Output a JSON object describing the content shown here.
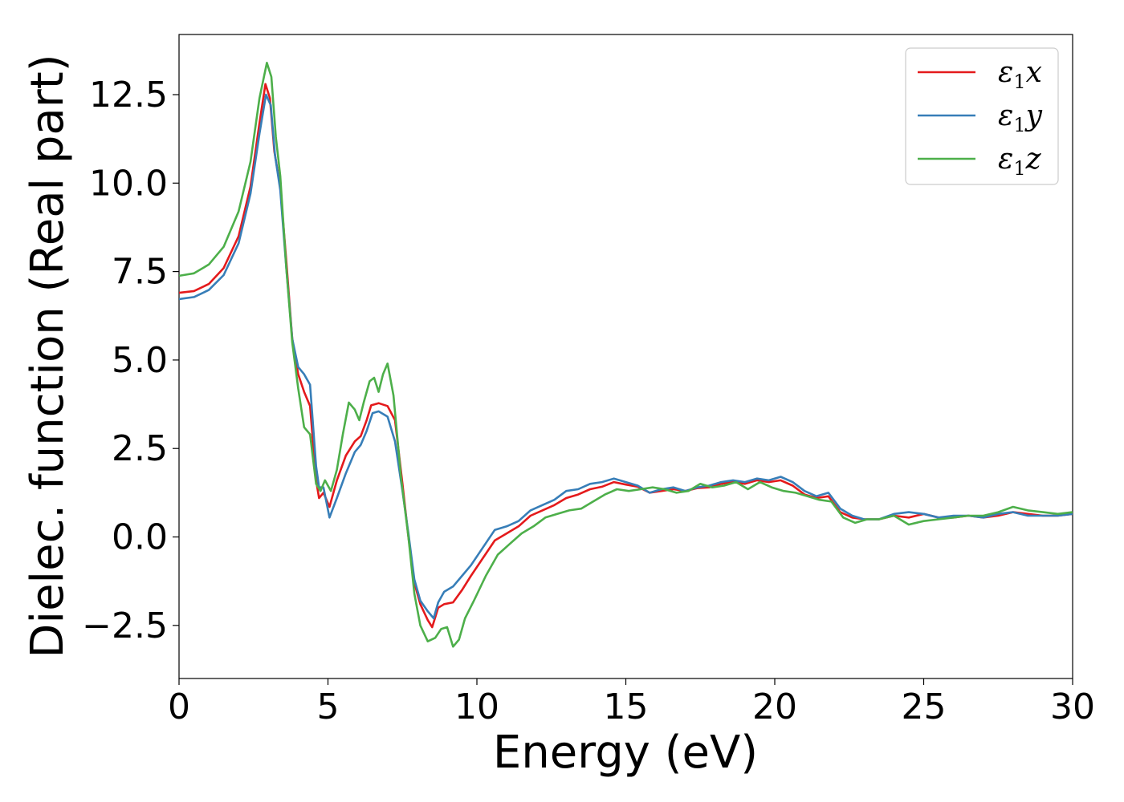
{
  "chart_data": {
    "type": "line",
    "xlabel": "Energy (eV)",
    "ylabel": "Dielec. function (Real part)",
    "xlim": [
      0,
      30
    ],
    "ylim": [
      -4.0,
      14.2
    ],
    "xticks": [
      0,
      5,
      10,
      15,
      20,
      25,
      30
    ],
    "xtick_labels": [
      "0",
      "5",
      "10",
      "15",
      "20",
      "25",
      "30"
    ],
    "yticks": [
      -2.5,
      0.0,
      2.5,
      5.0,
      7.5,
      10.0,
      12.5
    ],
    "ytick_labels": [
      "−2.5",
      "0.0",
      "2.5",
      "5.0",
      "7.5",
      "10.0",
      "12.5"
    ],
    "grid": false,
    "legend_position": "top-right",
    "series": [
      {
        "name": "ε1x",
        "label_main": "ε",
        "label_sub": "1",
        "label_tail": "x",
        "color": "#e41a1c",
        "points": [
          [
            0,
            6.9
          ],
          [
            0.5,
            6.95
          ],
          [
            1.0,
            7.15
          ],
          [
            1.5,
            7.6
          ],
          [
            2.0,
            8.5
          ],
          [
            2.4,
            9.9
          ],
          [
            2.7,
            11.7
          ],
          [
            2.9,
            12.8
          ],
          [
            3.05,
            12.4
          ],
          [
            3.2,
            10.9
          ],
          [
            3.4,
            9.9
          ],
          [
            3.6,
            7.8
          ],
          [
            3.8,
            5.6
          ],
          [
            4.0,
            4.6
          ],
          [
            4.2,
            4.1
          ],
          [
            4.4,
            3.7
          ],
          [
            4.6,
            1.6
          ],
          [
            4.7,
            1.1
          ],
          [
            4.85,
            1.25
          ],
          [
            5.05,
            0.85
          ],
          [
            5.3,
            1.6
          ],
          [
            5.6,
            2.3
          ],
          [
            5.9,
            2.7
          ],
          [
            6.1,
            2.85
          ],
          [
            6.3,
            3.3
          ],
          [
            6.45,
            3.72
          ],
          [
            6.7,
            3.78
          ],
          [
            7.0,
            3.7
          ],
          [
            7.25,
            3.3
          ],
          [
            7.5,
            1.5
          ],
          [
            7.7,
            0.0
          ],
          [
            7.9,
            -1.3
          ],
          [
            8.1,
            -1.9
          ],
          [
            8.35,
            -2.35
          ],
          [
            8.5,
            -2.55
          ],
          [
            8.7,
            -2.0
          ],
          [
            8.9,
            -1.9
          ],
          [
            9.2,
            -1.85
          ],
          [
            9.5,
            -1.5
          ],
          [
            9.8,
            -1.1
          ],
          [
            10.2,
            -0.6
          ],
          [
            10.6,
            -0.1
          ],
          [
            11.0,
            0.1
          ],
          [
            11.4,
            0.3
          ],
          [
            11.8,
            0.6
          ],
          [
            12.2,
            0.75
          ],
          [
            12.6,
            0.9
          ],
          [
            13.0,
            1.1
          ],
          [
            13.4,
            1.2
          ],
          [
            13.8,
            1.35
          ],
          [
            14.2,
            1.42
          ],
          [
            14.6,
            1.55
          ],
          [
            15.0,
            1.48
          ],
          [
            15.4,
            1.42
          ],
          [
            15.8,
            1.25
          ],
          [
            16.2,
            1.3
          ],
          [
            16.6,
            1.35
          ],
          [
            17.0,
            1.3
          ],
          [
            17.4,
            1.38
          ],
          [
            17.8,
            1.4
          ],
          [
            18.2,
            1.5
          ],
          [
            18.6,
            1.55
          ],
          [
            19.0,
            1.5
          ],
          [
            19.4,
            1.6
          ],
          [
            19.8,
            1.55
          ],
          [
            20.2,
            1.6
          ],
          [
            20.6,
            1.45
          ],
          [
            21.0,
            1.2
          ],
          [
            21.4,
            1.1
          ],
          [
            21.8,
            1.15
          ],
          [
            22.2,
            0.7
          ],
          [
            22.6,
            0.55
          ],
          [
            23.0,
            0.5
          ],
          [
            23.5,
            0.5
          ],
          [
            24.0,
            0.6
          ],
          [
            24.5,
            0.55
          ],
          [
            25.0,
            0.65
          ],
          [
            25.5,
            0.55
          ],
          [
            26.0,
            0.55
          ],
          [
            26.5,
            0.6
          ],
          [
            27.0,
            0.55
          ],
          [
            27.5,
            0.6
          ],
          [
            28.0,
            0.7
          ],
          [
            28.5,
            0.65
          ],
          [
            29.0,
            0.6
          ],
          [
            29.5,
            0.6
          ],
          [
            30.0,
            0.65
          ]
        ]
      },
      {
        "name": "ε1y",
        "label_main": "ε",
        "label_sub": "1",
        "label_tail": "y",
        "color": "#377eb8",
        "points": [
          [
            0,
            6.72
          ],
          [
            0.5,
            6.78
          ],
          [
            1.0,
            6.98
          ],
          [
            1.5,
            7.4
          ],
          [
            2.0,
            8.3
          ],
          [
            2.4,
            9.7
          ],
          [
            2.7,
            11.4
          ],
          [
            2.92,
            12.5
          ],
          [
            3.08,
            12.2
          ],
          [
            3.22,
            10.8
          ],
          [
            3.4,
            9.8
          ],
          [
            3.6,
            7.6
          ],
          [
            3.8,
            5.6
          ],
          [
            4.0,
            4.8
          ],
          [
            4.2,
            4.6
          ],
          [
            4.4,
            4.3
          ],
          [
            4.6,
            2.0
          ],
          [
            4.7,
            1.4
          ],
          [
            4.85,
            1.4
          ],
          [
            5.05,
            0.55
          ],
          [
            5.3,
            1.1
          ],
          [
            5.6,
            1.8
          ],
          [
            5.9,
            2.4
          ],
          [
            6.1,
            2.6
          ],
          [
            6.3,
            3.0
          ],
          [
            6.5,
            3.5
          ],
          [
            6.7,
            3.55
          ],
          [
            7.0,
            3.4
          ],
          [
            7.25,
            2.7
          ],
          [
            7.5,
            1.3
          ],
          [
            7.7,
            0.1
          ],
          [
            7.9,
            -1.2
          ],
          [
            8.1,
            -1.8
          ],
          [
            8.35,
            -2.1
          ],
          [
            8.55,
            -2.3
          ],
          [
            8.7,
            -1.85
          ],
          [
            8.9,
            -1.55
          ],
          [
            9.2,
            -1.4
          ],
          [
            9.5,
            -1.1
          ],
          [
            9.8,
            -0.8
          ],
          [
            10.2,
            -0.3
          ],
          [
            10.6,
            0.2
          ],
          [
            11.0,
            0.3
          ],
          [
            11.4,
            0.45
          ],
          [
            11.8,
            0.75
          ],
          [
            12.2,
            0.9
          ],
          [
            12.6,
            1.05
          ],
          [
            13.0,
            1.3
          ],
          [
            13.4,
            1.35
          ],
          [
            13.8,
            1.5
          ],
          [
            14.2,
            1.55
          ],
          [
            14.6,
            1.65
          ],
          [
            15.0,
            1.55
          ],
          [
            15.4,
            1.45
          ],
          [
            15.8,
            1.25
          ],
          [
            16.2,
            1.35
          ],
          [
            16.6,
            1.4
          ],
          [
            17.0,
            1.3
          ],
          [
            17.4,
            1.4
          ],
          [
            17.8,
            1.45
          ],
          [
            18.2,
            1.55
          ],
          [
            18.6,
            1.6
          ],
          [
            19.0,
            1.55
          ],
          [
            19.4,
            1.65
          ],
          [
            19.8,
            1.6
          ],
          [
            20.2,
            1.7
          ],
          [
            20.6,
            1.55
          ],
          [
            21.0,
            1.3
          ],
          [
            21.4,
            1.15
          ],
          [
            21.8,
            1.25
          ],
          [
            22.2,
            0.8
          ],
          [
            22.6,
            0.6
          ],
          [
            23.0,
            0.5
          ],
          [
            23.5,
            0.5
          ],
          [
            24.0,
            0.65
          ],
          [
            24.5,
            0.7
          ],
          [
            25.0,
            0.65
          ],
          [
            25.5,
            0.55
          ],
          [
            26.0,
            0.6
          ],
          [
            26.5,
            0.6
          ],
          [
            27.0,
            0.55
          ],
          [
            27.5,
            0.65
          ],
          [
            28.0,
            0.7
          ],
          [
            28.5,
            0.6
          ],
          [
            29.0,
            0.6
          ],
          [
            29.5,
            0.6
          ],
          [
            30.0,
            0.65
          ]
        ]
      },
      {
        "name": "ε1z",
        "label_main": "ε",
        "label_sub": "1",
        "label_tail": "z",
        "color": "#4daf4a",
        "points": [
          [
            0,
            7.38
          ],
          [
            0.5,
            7.45
          ],
          [
            1.0,
            7.7
          ],
          [
            1.5,
            8.2
          ],
          [
            2.0,
            9.2
          ],
          [
            2.4,
            10.6
          ],
          [
            2.7,
            12.4
          ],
          [
            2.95,
            13.4
          ],
          [
            3.1,
            13.0
          ],
          [
            3.25,
            11.3
          ],
          [
            3.4,
            10.2
          ],
          [
            3.6,
            7.6
          ],
          [
            3.8,
            5.5
          ],
          [
            4.0,
            4.2
          ],
          [
            4.2,
            3.1
          ],
          [
            4.4,
            2.9
          ],
          [
            4.6,
            1.5
          ],
          [
            4.75,
            1.3
          ],
          [
            4.9,
            1.6
          ],
          [
            5.1,
            1.3
          ],
          [
            5.3,
            1.9
          ],
          [
            5.5,
            2.9
          ],
          [
            5.7,
            3.8
          ],
          [
            5.9,
            3.6
          ],
          [
            6.05,
            3.3
          ],
          [
            6.2,
            3.8
          ],
          [
            6.4,
            4.4
          ],
          [
            6.55,
            4.5
          ],
          [
            6.7,
            4.1
          ],
          [
            6.85,
            4.6
          ],
          [
            7.0,
            4.9
          ],
          [
            7.2,
            4.0
          ],
          [
            7.45,
            1.7
          ],
          [
            7.7,
            0.0
          ],
          [
            7.9,
            -1.6
          ],
          [
            8.1,
            -2.5
          ],
          [
            8.35,
            -2.95
          ],
          [
            8.6,
            -2.85
          ],
          [
            8.8,
            -2.6
          ],
          [
            9.0,
            -2.55
          ],
          [
            9.2,
            -3.1
          ],
          [
            9.4,
            -2.9
          ],
          [
            9.6,
            -2.3
          ],
          [
            9.9,
            -1.8
          ],
          [
            10.3,
            -1.1
          ],
          [
            10.7,
            -0.5
          ],
          [
            11.1,
            -0.2
          ],
          [
            11.5,
            0.1
          ],
          [
            11.9,
            0.3
          ],
          [
            12.3,
            0.55
          ],
          [
            12.7,
            0.65
          ],
          [
            13.1,
            0.75
          ],
          [
            13.5,
            0.8
          ],
          [
            13.9,
            1.0
          ],
          [
            14.3,
            1.2
          ],
          [
            14.7,
            1.35
          ],
          [
            15.1,
            1.3
          ],
          [
            15.5,
            1.35
          ],
          [
            15.9,
            1.4
          ],
          [
            16.3,
            1.35
          ],
          [
            16.7,
            1.25
          ],
          [
            17.1,
            1.3
          ],
          [
            17.5,
            1.5
          ],
          [
            17.9,
            1.4
          ],
          [
            18.3,
            1.45
          ],
          [
            18.7,
            1.55
          ],
          [
            19.1,
            1.35
          ],
          [
            19.5,
            1.55
          ],
          [
            19.9,
            1.4
          ],
          [
            20.3,
            1.3
          ],
          [
            20.7,
            1.25
          ],
          [
            21.1,
            1.15
          ],
          [
            21.5,
            1.05
          ],
          [
            21.9,
            1.0
          ],
          [
            22.3,
            0.55
          ],
          [
            22.7,
            0.4
          ],
          [
            23.1,
            0.5
          ],
          [
            23.5,
            0.5
          ],
          [
            24.0,
            0.6
          ],
          [
            24.5,
            0.35
          ],
          [
            25.0,
            0.45
          ],
          [
            25.5,
            0.5
          ],
          [
            26.0,
            0.55
          ],
          [
            26.5,
            0.6
          ],
          [
            27.0,
            0.6
          ],
          [
            27.5,
            0.7
          ],
          [
            28.0,
            0.85
          ],
          [
            28.5,
            0.75
          ],
          [
            29.0,
            0.7
          ],
          [
            29.5,
            0.65
          ],
          [
            30.0,
            0.7
          ]
        ]
      }
    ]
  }
}
